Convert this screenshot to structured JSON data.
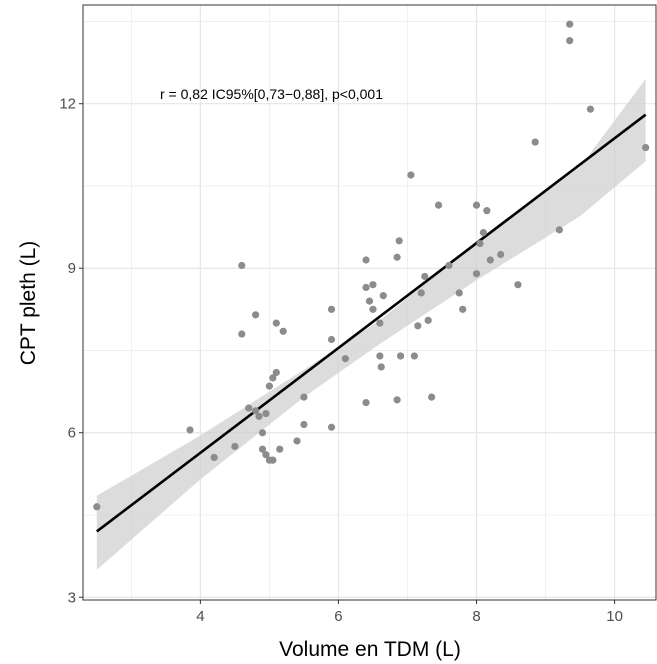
{
  "chart_data": {
    "type": "scatter",
    "xlabel": "Volume en TDM (L)",
    "ylabel": "CPT pleth (L)",
    "xlim": [
      2.3,
      10.6
    ],
    "ylim": [
      2.95,
      13.8
    ],
    "x_ticks": [
      4,
      6,
      8,
      10
    ],
    "y_ticks": [
      3,
      6,
      9,
      12
    ],
    "x_tick_labels": [
      "4",
      "6",
      "8",
      "10"
    ],
    "y_tick_labels": [
      "3",
      "6",
      "9",
      "12"
    ],
    "grid": true,
    "annotation": "r = 0,82 IC95%[0,73−0,88], p<0,001",
    "colors": {
      "points": "#8c8c8c",
      "line": "#000000",
      "band": "#d0d0d0",
      "grid": "#e6e6e6"
    },
    "regression": {
      "x": [
        2.5,
        10.45
      ],
      "y": [
        4.2,
        11.8
      ]
    },
    "confidence_band": {
      "x": [
        2.5,
        4.0,
        5.5,
        6.6,
        8.0,
        9.5,
        10.45
      ],
      "lower": [
        3.5,
        5.15,
        6.65,
        7.62,
        8.78,
        9.95,
        10.95
      ],
      "upper": [
        4.85,
        5.95,
        7.15,
        8.05,
        9.5,
        10.85,
        12.45
      ]
    },
    "points": [
      [
        2.5,
        4.65
      ],
      [
        3.85,
        6.05
      ],
      [
        4.2,
        5.55
      ],
      [
        4.5,
        5.75
      ],
      [
        4.6,
        9.05
      ],
      [
        4.6,
        7.8
      ],
      [
        4.7,
        6.45
      ],
      [
        4.8,
        6.4
      ],
      [
        4.8,
        8.15
      ],
      [
        4.85,
        6.3
      ],
      [
        4.9,
        5.7
      ],
      [
        4.9,
        6.0
      ],
      [
        4.95,
        5.6
      ],
      [
        4.95,
        6.35
      ],
      [
        5.0,
        5.5
      ],
      [
        5.0,
        6.85
      ],
      [
        5.05,
        5.5
      ],
      [
        5.05,
        7.0
      ],
      [
        5.1,
        7.1
      ],
      [
        5.1,
        8.0
      ],
      [
        5.15,
        5.7
      ],
      [
        5.2,
        7.85
      ],
      [
        5.4,
        5.85
      ],
      [
        5.5,
        6.65
      ],
      [
        5.5,
        6.15
      ],
      [
        5.9,
        6.1
      ],
      [
        5.9,
        8.25
      ],
      [
        5.9,
        7.7
      ],
      [
        6.1,
        7.35
      ],
      [
        6.4,
        8.65
      ],
      [
        6.4,
        9.15
      ],
      [
        6.4,
        6.55
      ],
      [
        6.45,
        8.4
      ],
      [
        6.5,
        8.7
      ],
      [
        6.5,
        8.25
      ],
      [
        6.6,
        7.4
      ],
      [
        6.6,
        8.0
      ],
      [
        6.62,
        7.2
      ],
      [
        6.65,
        8.5
      ],
      [
        6.85,
        6.6
      ],
      [
        6.85,
        9.2
      ],
      [
        6.88,
        9.5
      ],
      [
        6.9,
        7.4
      ],
      [
        7.05,
        10.7
      ],
      [
        7.1,
        7.4
      ],
      [
        7.15,
        7.95
      ],
      [
        7.2,
        8.55
      ],
      [
        7.25,
        8.85
      ],
      [
        7.3,
        8.05
      ],
      [
        7.35,
        6.65
      ],
      [
        7.45,
        10.15
      ],
      [
        7.6,
        9.05
      ],
      [
        7.75,
        8.55
      ],
      [
        7.8,
        8.25
      ],
      [
        8.0,
        8.9
      ],
      [
        8.0,
        10.15
      ],
      [
        8.05,
        9.45
      ],
      [
        8.1,
        9.65
      ],
      [
        8.15,
        10.05
      ],
      [
        8.2,
        9.15
      ],
      [
        8.35,
        9.25
      ],
      [
        8.6,
        8.7
      ],
      [
        8.85,
        11.3
      ],
      [
        9.2,
        9.7
      ],
      [
        9.35,
        13.45
      ],
      [
        9.35,
        13.15
      ],
      [
        9.65,
        11.9
      ],
      [
        10.45,
        11.2
      ]
    ]
  }
}
